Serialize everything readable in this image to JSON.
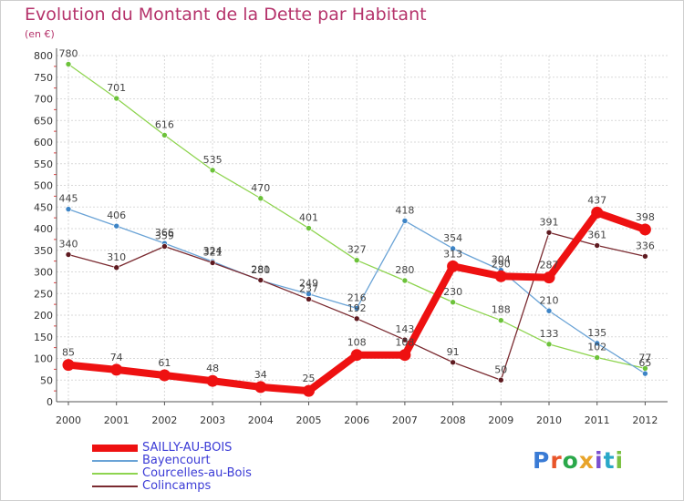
{
  "title": "Evolution du Montant de la Dette par Habitant",
  "unit_label": "(en €)",
  "logo": {
    "letters": [
      {
        "char": "P",
        "color": "#3a7bd5"
      },
      {
        "char": "r",
        "color": "#e8552a"
      },
      {
        "char": "o",
        "color": "#2aa84a"
      },
      {
        "char": "x",
        "color": "#e8a42a"
      },
      {
        "char": "i",
        "color": "#7a4fd0"
      },
      {
        "char": "t",
        "color": "#2aa8c8"
      },
      {
        "char": "i",
        "color": "#7ac142"
      }
    ]
  },
  "chart_data": {
    "type": "line",
    "title": "Evolution du Montant de la Dette par Habitant",
    "ylabel": "(en €)",
    "xlabel": "",
    "x": [
      "2000",
      "2001",
      "2002",
      "2003",
      "2004",
      "2005",
      "2006",
      "2007",
      "2008",
      "2009",
      "2010",
      "2011",
      "2012"
    ],
    "ylim": [
      0,
      800
    ],
    "yticks": [
      0,
      50,
      100,
      150,
      200,
      250,
      300,
      350,
      400,
      450,
      500,
      550,
      600,
      650,
      700,
      750,
      800
    ],
    "grid": true,
    "legend_position": "bottom-left",
    "series": [
      {
        "name": "Courcelles-au-Bois",
        "color": "#8ed44f",
        "point_color": "#6cc23a",
        "width": 1.3,
        "values": [
          780,
          701,
          616,
          535,
          470,
          401,
          327,
          280,
          230,
          188,
          133,
          102,
          77
        ],
        "labels": [
          "780",
          "701",
          "616",
          "535",
          "470",
          "401",
          "327",
          "280",
          "230",
          "188",
          "133",
          "102",
          "77"
        ]
      },
      {
        "name": "Bayencourt",
        "color": "#6aa3d6",
        "point_color": "#3d84c6",
        "width": 1.3,
        "values": [
          445,
          406,
          366,
          324,
          280,
          249,
          216,
          418,
          354,
          304,
          210,
          135,
          65
        ],
        "labels": [
          "445",
          "406",
          "366",
          "324",
          "280",
          "249",
          "216",
          "418",
          "354",
          "304",
          "210",
          "135",
          "65"
        ]
      },
      {
        "name": "Colincamps",
        "color": "#7a2a30",
        "point_color": "#5e1a20",
        "width": 1.3,
        "values": [
          340,
          310,
          359,
          321,
          281,
          237,
          192,
          143,
          91,
          50,
          391,
          361,
          336
        ],
        "labels": [
          "340",
          "310",
          "359",
          "321",
          "281",
          "237",
          "192",
          "143",
          "91",
          "50",
          "391",
          "361",
          "336"
        ]
      },
      {
        "name": "SAILLY-AU-BOIS",
        "color": "#ee1111",
        "point_color": "#ee1111",
        "width": 8,
        "values": [
          85,
          74,
          61,
          48,
          34,
          25,
          108,
          108,
          313,
          290,
          287,
          437,
          398
        ],
        "labels": [
          "85",
          "74",
          "61",
          "48",
          "34",
          "25",
          "108",
          "108",
          "313",
          "290",
          "287",
          "437",
          "398"
        ]
      }
    ],
    "legend_order": [
      "SAILLY-AU-BOIS",
      "Bayencourt",
      "Courcelles-au-Bois",
      "Colincamps"
    ]
  }
}
